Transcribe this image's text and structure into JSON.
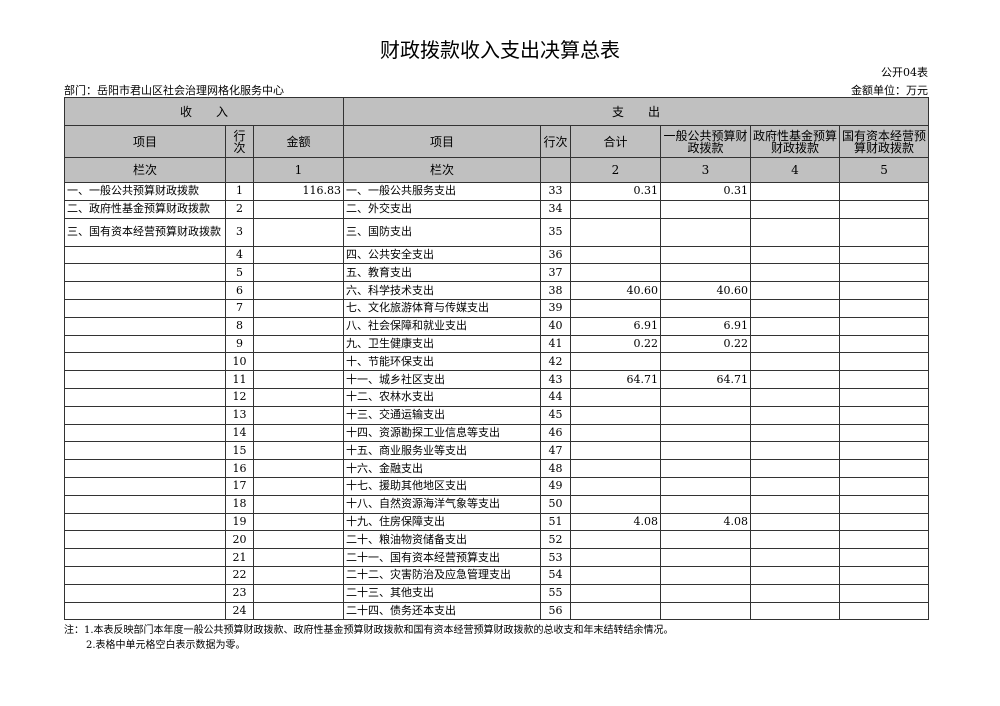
{
  "title": "财政拨款收入支出决算总表",
  "form_code": "公开04表",
  "department": "部门：岳阳市君山区社会治理网格化服务中心",
  "unit": "金额单位：万元",
  "header": {
    "income": "收　　入",
    "expense": "支　　出",
    "cols": [
      "项目",
      "行次",
      "金额",
      "项目",
      "行次",
      "合计",
      "一般公共预算财政拨款",
      "政府性基金预算财政拨款",
      "国有资本经营预算财政拨款"
    ],
    "lanci": "栏次",
    "col_nums": [
      "1",
      "2",
      "3",
      "4",
      "5"
    ]
  },
  "rows": [
    {
      "in_item": "一、一般公共预算财政拨款",
      "in_no": "1",
      "in_amt": "116.83",
      "ex_item": "一、一般公共服务支出",
      "ex_no": "33",
      "total": "0.31",
      "general": "0.31",
      "fund": "",
      "state": ""
    },
    {
      "in_item": "二、政府性基金预算财政拨款",
      "in_no": "2",
      "in_amt": "",
      "ex_item": "二、外交支出",
      "ex_no": "34",
      "total": "",
      "general": "",
      "fund": "",
      "state": ""
    },
    {
      "in_item": "三、国有资本经营预算财政拨款",
      "in_no": "3",
      "in_amt": "",
      "ex_item": "三、国防支出",
      "ex_no": "35",
      "total": "",
      "general": "",
      "fund": "",
      "state": ""
    },
    {
      "in_item": "",
      "in_no": "4",
      "in_amt": "",
      "ex_item": "四、公共安全支出",
      "ex_no": "36",
      "total": "",
      "general": "",
      "fund": "",
      "state": ""
    },
    {
      "in_item": "",
      "in_no": "5",
      "in_amt": "",
      "ex_item": "五、教育支出",
      "ex_no": "37",
      "total": "",
      "general": "",
      "fund": "",
      "state": ""
    },
    {
      "in_item": "",
      "in_no": "6",
      "in_amt": "",
      "ex_item": "六、科学技术支出",
      "ex_no": "38",
      "total": "40.60",
      "general": "40.60",
      "fund": "",
      "state": ""
    },
    {
      "in_item": "",
      "in_no": "7",
      "in_amt": "",
      "ex_item": "七、文化旅游体育与传媒支出",
      "ex_no": "39",
      "total": "",
      "general": "",
      "fund": "",
      "state": ""
    },
    {
      "in_item": "",
      "in_no": "8",
      "in_amt": "",
      "ex_item": "八、社会保障和就业支出",
      "ex_no": "40",
      "total": "6.91",
      "general": "6.91",
      "fund": "",
      "state": ""
    },
    {
      "in_item": "",
      "in_no": "9",
      "in_amt": "",
      "ex_item": "九、卫生健康支出",
      "ex_no": "41",
      "total": "0.22",
      "general": "0.22",
      "fund": "",
      "state": ""
    },
    {
      "in_item": "",
      "in_no": "10",
      "in_amt": "",
      "ex_item": "十、节能环保支出",
      "ex_no": "42",
      "total": "",
      "general": "",
      "fund": "",
      "state": ""
    },
    {
      "in_item": "",
      "in_no": "11",
      "in_amt": "",
      "ex_item": "十一、城乡社区支出",
      "ex_no": "43",
      "total": "64.71",
      "general": "64.71",
      "fund": "",
      "state": ""
    },
    {
      "in_item": "",
      "in_no": "12",
      "in_amt": "",
      "ex_item": "十二、农林水支出",
      "ex_no": "44",
      "total": "",
      "general": "",
      "fund": "",
      "state": ""
    },
    {
      "in_item": "",
      "in_no": "13",
      "in_amt": "",
      "ex_item": "十三、交通运输支出",
      "ex_no": "45",
      "total": "",
      "general": "",
      "fund": "",
      "state": ""
    },
    {
      "in_item": "",
      "in_no": "14",
      "in_amt": "",
      "ex_item": "十四、资源勘探工业信息等支出",
      "ex_no": "46",
      "total": "",
      "general": "",
      "fund": "",
      "state": ""
    },
    {
      "in_item": "",
      "in_no": "15",
      "in_amt": "",
      "ex_item": "十五、商业服务业等支出",
      "ex_no": "47",
      "total": "",
      "general": "",
      "fund": "",
      "state": ""
    },
    {
      "in_item": "",
      "in_no": "16",
      "in_amt": "",
      "ex_item": "十六、金融支出",
      "ex_no": "48",
      "total": "",
      "general": "",
      "fund": "",
      "state": ""
    },
    {
      "in_item": "",
      "in_no": "17",
      "in_amt": "",
      "ex_item": "十七、援助其他地区支出",
      "ex_no": "49",
      "total": "",
      "general": "",
      "fund": "",
      "state": ""
    },
    {
      "in_item": "",
      "in_no": "18",
      "in_amt": "",
      "ex_item": "十八、自然资源海洋气象等支出",
      "ex_no": "50",
      "total": "",
      "general": "",
      "fund": "",
      "state": ""
    },
    {
      "in_item": "",
      "in_no": "19",
      "in_amt": "",
      "ex_item": "十九、住房保障支出",
      "ex_no": "51",
      "total": "4.08",
      "general": "4.08",
      "fund": "",
      "state": ""
    },
    {
      "in_item": "",
      "in_no": "20",
      "in_amt": "",
      "ex_item": "二十、粮油物资储备支出",
      "ex_no": "52",
      "total": "",
      "general": "",
      "fund": "",
      "state": ""
    },
    {
      "in_item": "",
      "in_no": "21",
      "in_amt": "",
      "ex_item": "二十一、国有资本经营预算支出",
      "ex_no": "53",
      "total": "",
      "general": "",
      "fund": "",
      "state": ""
    },
    {
      "in_item": "",
      "in_no": "22",
      "in_amt": "",
      "ex_item": "二十二、灾害防治及应急管理支出",
      "ex_no": "54",
      "total": "",
      "general": "",
      "fund": "",
      "state": ""
    },
    {
      "in_item": "",
      "in_no": "23",
      "in_amt": "",
      "ex_item": "二十三、其他支出",
      "ex_no": "55",
      "total": "",
      "general": "",
      "fund": "",
      "state": ""
    },
    {
      "in_item": "",
      "in_no": "24",
      "in_amt": "",
      "ex_item": "二十四、债务还本支出",
      "ex_no": "56",
      "total": "",
      "general": "",
      "fund": "",
      "state": ""
    }
  ],
  "notes": [
    "注：1.本表反映部门本年度一般公共预算财政拨款、政府性基金预算财政拨款和国有资本经营预算财政拨款的总收支和年末结转结余情况。",
    "2.表格中单元格空白表示数据为零。"
  ]
}
